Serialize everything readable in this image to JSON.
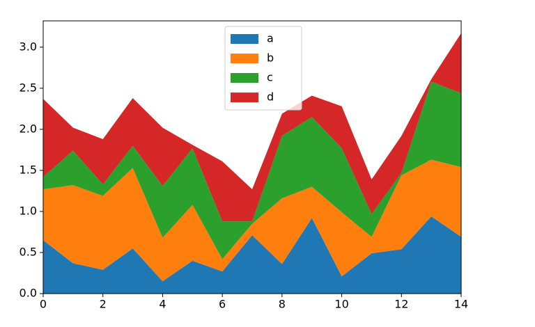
{
  "chart_data": {
    "type": "stacked_area",
    "x": [
      0,
      1,
      2,
      3,
      4,
      5,
      6,
      7,
      8,
      9,
      10,
      11,
      12,
      13,
      14
    ],
    "series": [
      {
        "name": "a",
        "color": "#1f77b4",
        "values": [
          0.65,
          0.37,
          0.29,
          0.55,
          0.15,
          0.4,
          0.27,
          0.71,
          0.36,
          0.92,
          0.21,
          0.49,
          0.54,
          0.94,
          0.69
        ]
      },
      {
        "name": "b",
        "color": "#ff7f0e",
        "values": [
          0.62,
          0.95,
          0.9,
          0.98,
          0.53,
          0.68,
          0.15,
          0.14,
          0.8,
          0.38,
          0.78,
          0.2,
          0.9,
          0.69,
          0.85
        ]
      },
      {
        "name": "c",
        "color": "#2ca02c",
        "values": [
          0.15,
          0.42,
          0.14,
          0.27,
          0.63,
          0.69,
          0.46,
          0.03,
          0.76,
          0.85,
          0.78,
          0.28,
          0.03,
          0.95,
          0.9
        ]
      },
      {
        "name": "d",
        "color": "#d62728",
        "values": [
          0.95,
          0.28,
          0.55,
          0.58,
          0.71,
          0.04,
          0.73,
          0.39,
          0.27,
          0.26,
          0.51,
          0.42,
          0.45,
          0.03,
          0.73
        ]
      }
    ],
    "xlim": [
      0,
      14
    ],
    "xticks": [
      0,
      2,
      4,
      6,
      8,
      10,
      12,
      14
    ],
    "ylim": [
      0,
      3.32
    ],
    "yticks": [
      {
        "value": 0,
        "label": "0.0"
      },
      0.5,
      {
        "value": 1,
        "label": "1.0"
      },
      1.5,
      {
        "value": 2,
        "label": "2.0"
      },
      2.5,
      {
        "value": 3,
        "label": "3.0"
      }
    ],
    "legend": "upper center"
  }
}
